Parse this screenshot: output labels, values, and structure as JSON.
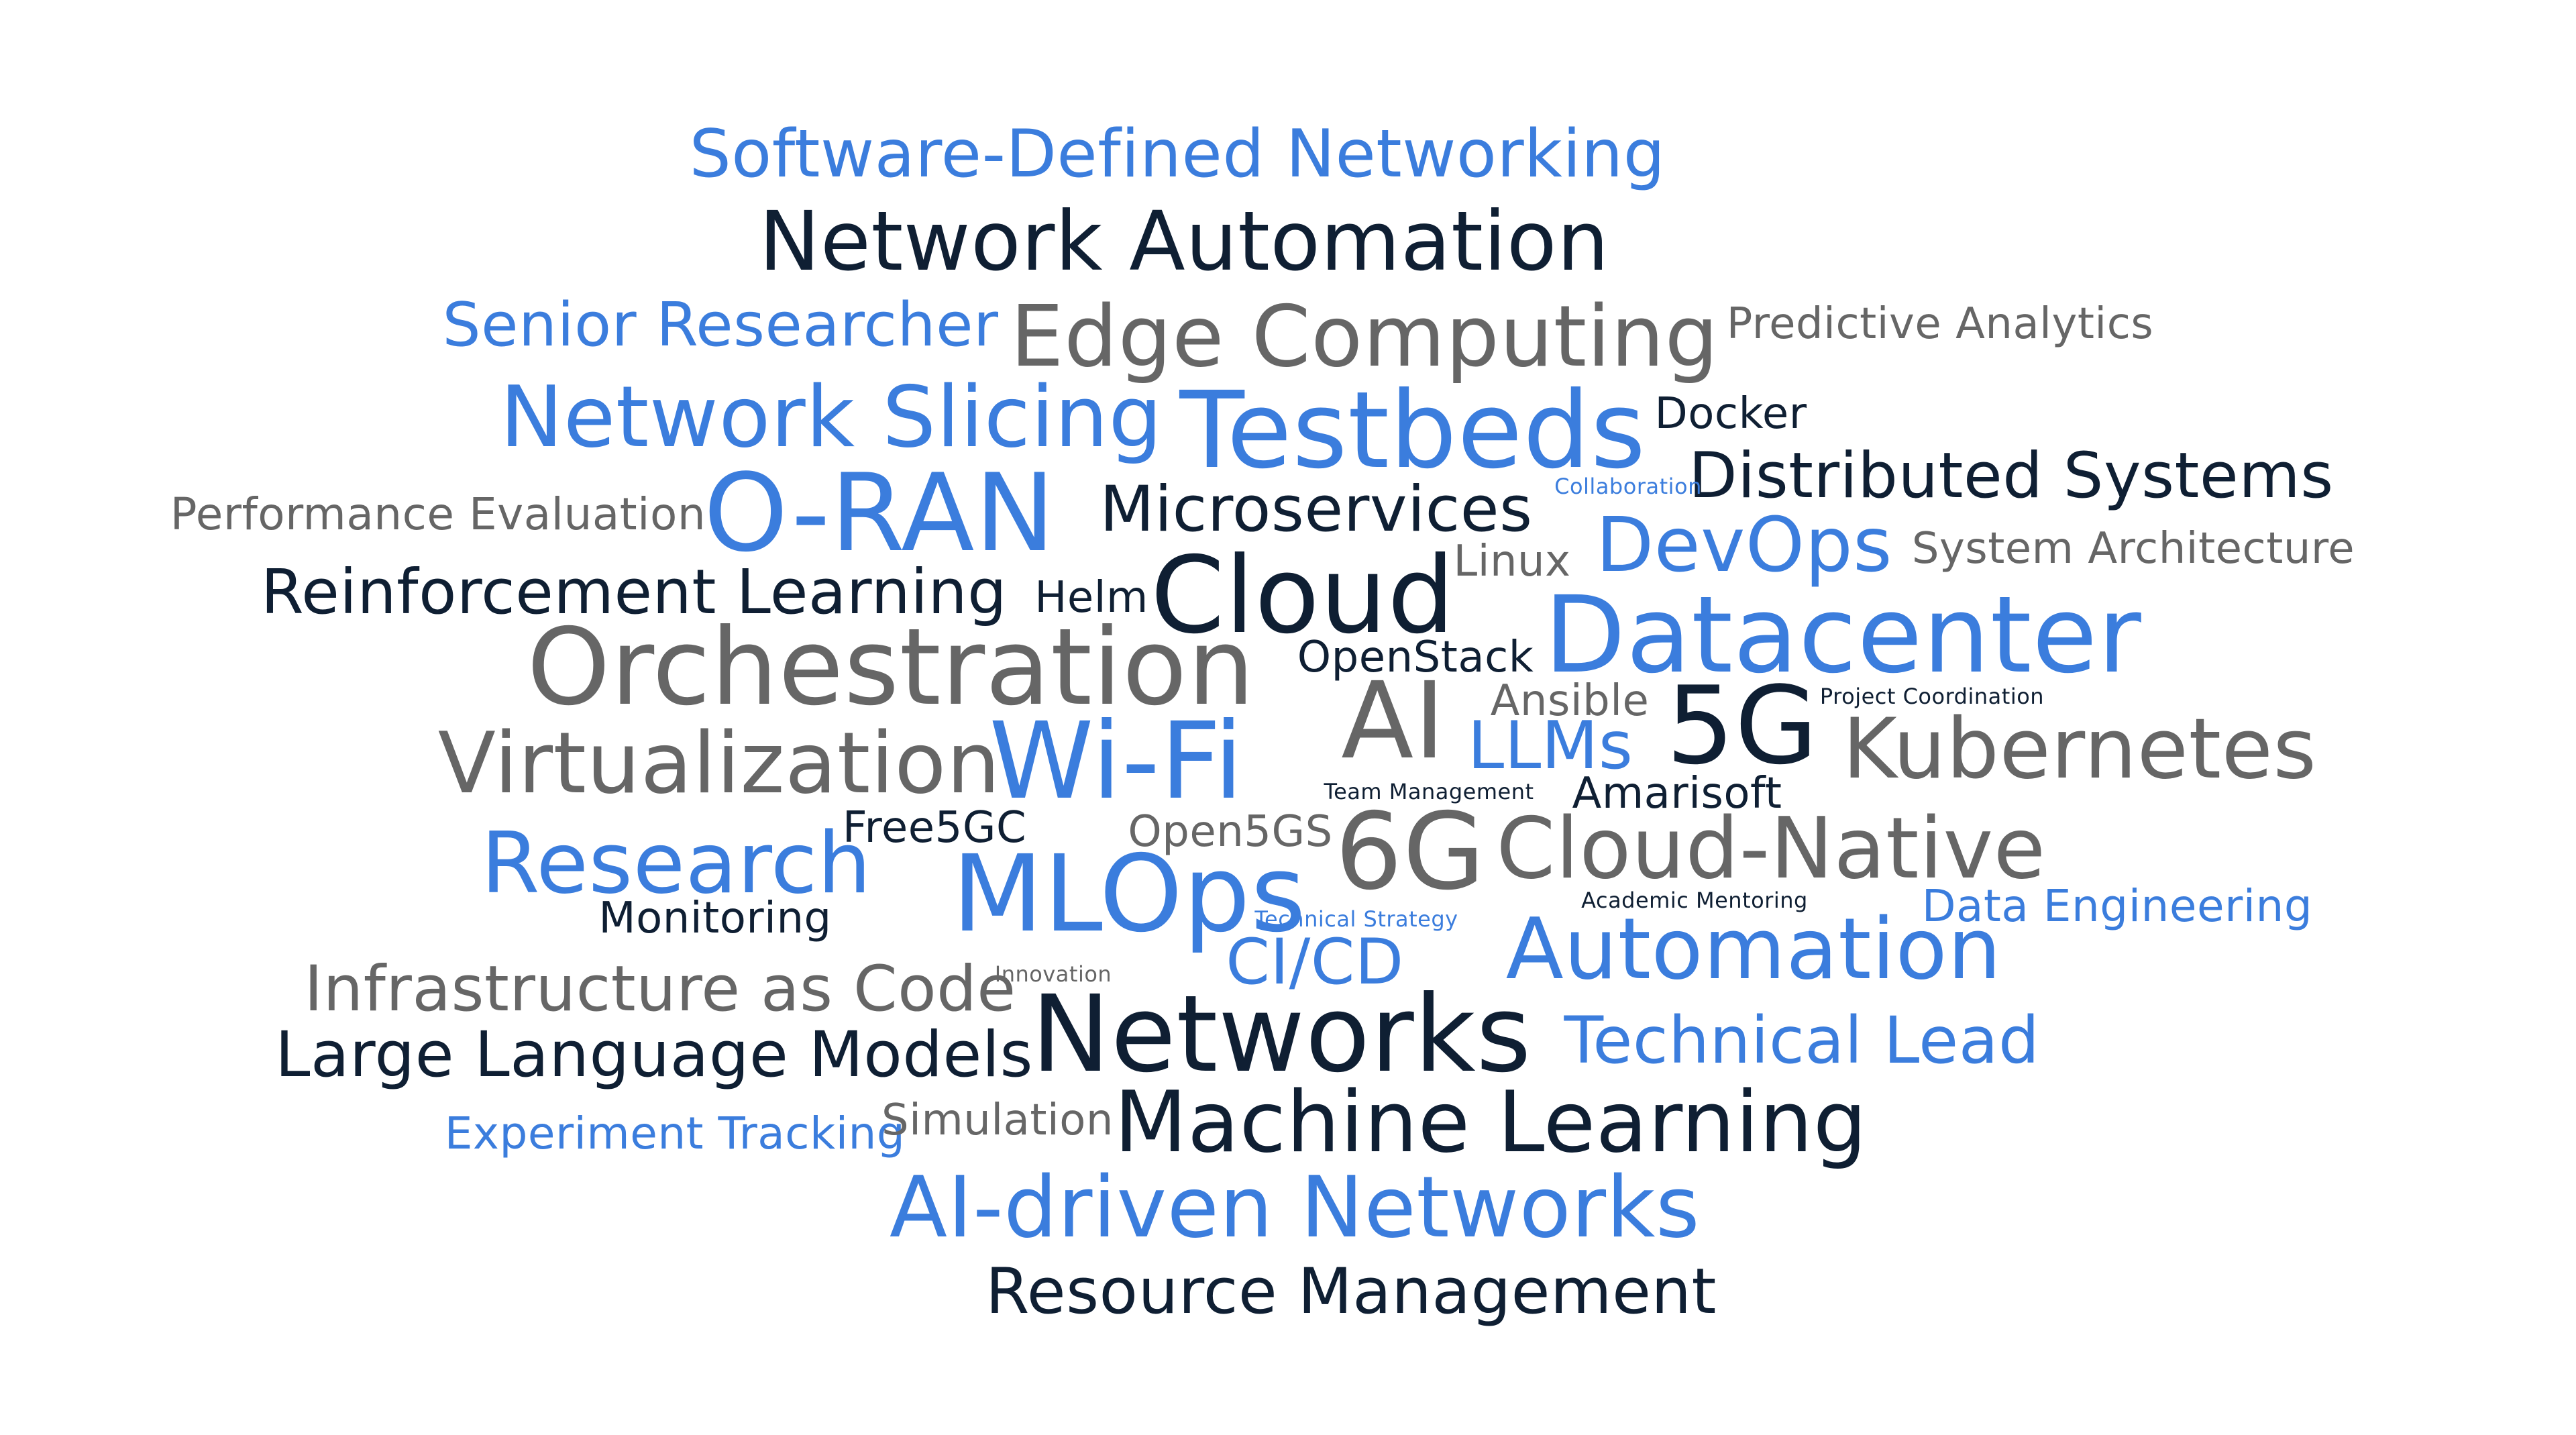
{
  "palette": {
    "blue": "#3b7ddd",
    "navy": "#0f1f33",
    "gray": "#666666"
  },
  "words": [
    {
      "text": "Software-Defined Networking",
      "color": "blue"
    },
    {
      "text": "Network Automation",
      "color": "navy"
    },
    {
      "text": "Senior Researcher",
      "color": "blue"
    },
    {
      "text": "Edge Computing",
      "color": "gray"
    },
    {
      "text": "Predictive Analytics",
      "color": "gray"
    },
    {
      "text": "Network Slicing",
      "color": "blue"
    },
    {
      "text": "Testbeds",
      "color": "blue"
    },
    {
      "text": "Docker",
      "color": "navy"
    },
    {
      "text": "Distributed Systems",
      "color": "navy"
    },
    {
      "text": "Collaboration",
      "color": "blue"
    },
    {
      "text": "Performance Evaluation",
      "color": "gray"
    },
    {
      "text": "O-RAN",
      "color": "blue"
    },
    {
      "text": "Microservices",
      "color": "navy"
    },
    {
      "text": "DevOps",
      "color": "blue"
    },
    {
      "text": "System Architecture",
      "color": "gray"
    },
    {
      "text": "Linux",
      "color": "gray"
    },
    {
      "text": "Reinforcement Learning",
      "color": "navy"
    },
    {
      "text": "Helm",
      "color": "navy"
    },
    {
      "text": "Cloud",
      "color": "navy"
    },
    {
      "text": "Datacenter",
      "color": "blue"
    },
    {
      "text": "Orchestration",
      "color": "gray"
    },
    {
      "text": "OpenStack",
      "color": "navy"
    },
    {
      "text": "Ansible",
      "color": "gray"
    },
    {
      "text": "AI",
      "color": "gray"
    },
    {
      "text": "5G",
      "color": "navy"
    },
    {
      "text": "Project Coordination",
      "color": "navy"
    },
    {
      "text": "LLMs",
      "color": "blue"
    },
    {
      "text": "Kubernetes",
      "color": "gray"
    },
    {
      "text": "Virtualization",
      "color": "gray"
    },
    {
      "text": "Wi-Fi",
      "color": "blue"
    },
    {
      "text": "Team Management",
      "color": "navy"
    },
    {
      "text": "Amarisoft",
      "color": "navy"
    },
    {
      "text": "Free5GC",
      "color": "navy"
    },
    {
      "text": "Open5GS",
      "color": "gray"
    },
    {
      "text": "6G",
      "color": "gray"
    },
    {
      "text": "Cloud-Native",
      "color": "gray"
    },
    {
      "text": "Research",
      "color": "blue"
    },
    {
      "text": "MLOps",
      "color": "blue"
    },
    {
      "text": "Academic Mentoring",
      "color": "navy"
    },
    {
      "text": "Data Engineering",
      "color": "blue"
    },
    {
      "text": "Monitoring",
      "color": "navy"
    },
    {
      "text": "Technical Strategy",
      "color": "blue"
    },
    {
      "text": "Automation",
      "color": "blue"
    },
    {
      "text": "Infrastructure as Code",
      "color": "gray"
    },
    {
      "text": "Innovation",
      "color": "gray"
    },
    {
      "text": "CI/CD",
      "color": "blue"
    },
    {
      "text": "Networks",
      "color": "navy"
    },
    {
      "text": "Large Language Models",
      "color": "navy"
    },
    {
      "text": "Technical Lead",
      "color": "blue"
    },
    {
      "text": "Experiment Tracking",
      "color": "blue"
    },
    {
      "text": "Simulation",
      "color": "gray"
    },
    {
      "text": "Machine Learning",
      "color": "navy"
    },
    {
      "text": "AI-driven Networks",
      "color": "blue"
    },
    {
      "text": "Resource Management",
      "color": "navy"
    }
  ]
}
